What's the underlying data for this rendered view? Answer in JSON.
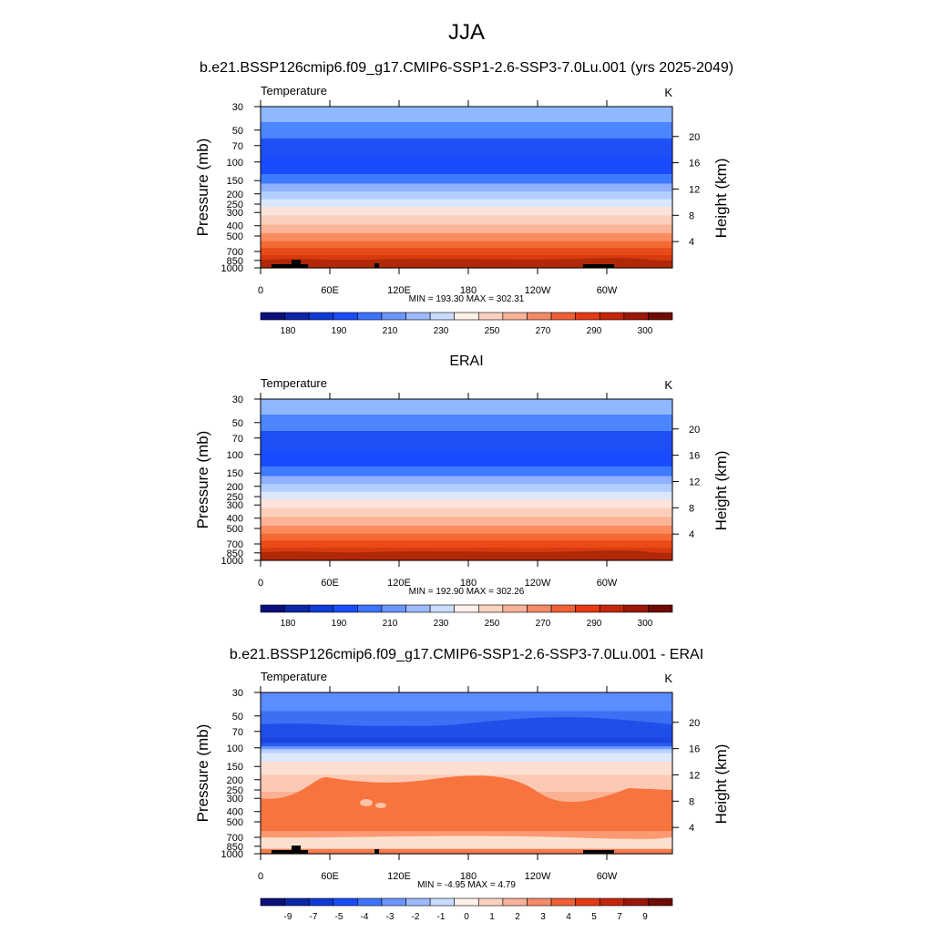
{
  "figure": {
    "title": "JJA"
  },
  "chart_data": [
    {
      "type": "heatmap",
      "title": "b.e21.BSSP126cmip6.f09_g17.CMIP6-SSP1-2.6-SSP3-7.0Lu.001 (yrs 2025-2049)",
      "left_label": "Temperature",
      "units": "K",
      "ylabel": "Pressure (mb)",
      "ylabel_right": "Height (km)",
      "y_scale": "log",
      "y_ticks": [
        "30",
        "50",
        "70",
        "100",
        "150",
        "200",
        "250",
        "300",
        "400",
        "500",
        "700",
        "850",
        "1000"
      ],
      "y_ticks_right": [
        "20",
        "16",
        "12",
        "8",
        "4"
      ],
      "x_ticks": [
        "0",
        "60E",
        "120E",
        "180",
        "120W",
        "60W"
      ],
      "stats": "MIN = 193.30  MAX = 302.31",
      "colorbar_labels": [
        "180",
        "190",
        "210",
        "230",
        "250",
        "270",
        "290",
        "300"
      ],
      "band_colors": [
        "#8fb8ff",
        "#4c86ff",
        "#1f50f5",
        "#1a4cff",
        "#3d7bff",
        "#8fb1ff",
        "#b2cdff",
        "#dae8ff",
        "#fbe4d9",
        "#fbcfbb",
        "#fbb497",
        "#fb8c60",
        "#f36a34",
        "#ea4a17",
        "#d63a0e",
        "#b02808"
      ],
      "terrain": true
    },
    {
      "type": "heatmap",
      "title": "ERAI",
      "left_label": "Temperature",
      "units": "K",
      "ylabel": "Pressure (mb)",
      "ylabel_right": "Height (km)",
      "y_scale": "log",
      "y_ticks": [
        "30",
        "50",
        "70",
        "100",
        "150",
        "200",
        "250",
        "300",
        "400",
        "500",
        "700",
        "850",
        "1000"
      ],
      "y_ticks_right": [
        "20",
        "16",
        "12",
        "8",
        "4"
      ],
      "x_ticks": [
        "0",
        "60E",
        "120E",
        "180",
        "120W",
        "60W"
      ],
      "stats": "MIN = 192.90  MAX = 302.26",
      "colorbar_labels": [
        "180",
        "190",
        "210",
        "230",
        "250",
        "270",
        "290",
        "300"
      ],
      "band_colors": [
        "#8fb8ff",
        "#4c86ff",
        "#1f50f5",
        "#1a4cff",
        "#3d7bff",
        "#8fb1ff",
        "#b2cdff",
        "#dae8ff",
        "#fbe4d9",
        "#fbcfbb",
        "#fbb497",
        "#fb8c60",
        "#f36a34",
        "#ea4a17",
        "#d63a0e",
        "#b02808"
      ],
      "terrain": false
    },
    {
      "type": "heatmap",
      "title": "b.e21.BSSP126cmip6.f09_g17.CMIP6-SSP1-2.6-SSP3-7.0Lu.001 - ERAI",
      "left_label": "Temperature",
      "units": "K",
      "ylabel": "Pressure (mb)",
      "ylabel_right": "Height (km)",
      "y_scale": "log",
      "y_ticks": [
        "30",
        "50",
        "70",
        "100",
        "150",
        "200",
        "250",
        "300",
        "400",
        "500",
        "700",
        "850",
        "1000"
      ],
      "y_ticks_right": [
        "20",
        "16",
        "12",
        "8",
        "4"
      ],
      "x_ticks": [
        "0",
        "60E",
        "120E",
        "180",
        "120W",
        "60W"
      ],
      "stats": "MIN =  -4.95  MAX =   4.79",
      "colorbar_labels": [
        "-9",
        "-7",
        "-5",
        "-4",
        "-3",
        "-2",
        "-1",
        "0",
        "1",
        "2",
        "3",
        "4",
        "5",
        "7",
        "9"
      ],
      "band_colors": [
        "#5a8dff",
        "#3d6ff5",
        "#1f4fe8",
        "#1a45e0",
        "#2a5cf0",
        "#6f9bff",
        "#b8d0ff",
        "#dce8ff",
        "#fce0d2",
        "#fccab4",
        "#fbb193",
        "#f98a5e",
        "#f7743f",
        "#fb9a72",
        "#fcc2a6",
        "#fbe0d0",
        "#f27c4d",
        "#e4491c"
      ],
      "terrain": true
    }
  ],
  "colorbar_colors": {
    "absolute": [
      "#0b0f7a",
      "#0c26a8",
      "#0f3ad6",
      "#1a4cff",
      "#3c73ff",
      "#6b96ff",
      "#9ebaff",
      "#c9dcff",
      "#fdf0e8",
      "#fbd2c0",
      "#f8b29a",
      "#f48a68",
      "#ef6035",
      "#e33a14",
      "#c4260b",
      "#9b1708",
      "#6e0b04"
    ],
    "difference": [
      "#0b0f7a",
      "#0c26a8",
      "#0f3ad6",
      "#1a4cff",
      "#3c73ff",
      "#6b96ff",
      "#9ebaff",
      "#c9dcff",
      "#fdf0e8",
      "#fbd2c0",
      "#f8b29a",
      "#f48a68",
      "#ef6035",
      "#e33a14",
      "#c4260b",
      "#9b1708",
      "#6e0b04"
    ]
  }
}
